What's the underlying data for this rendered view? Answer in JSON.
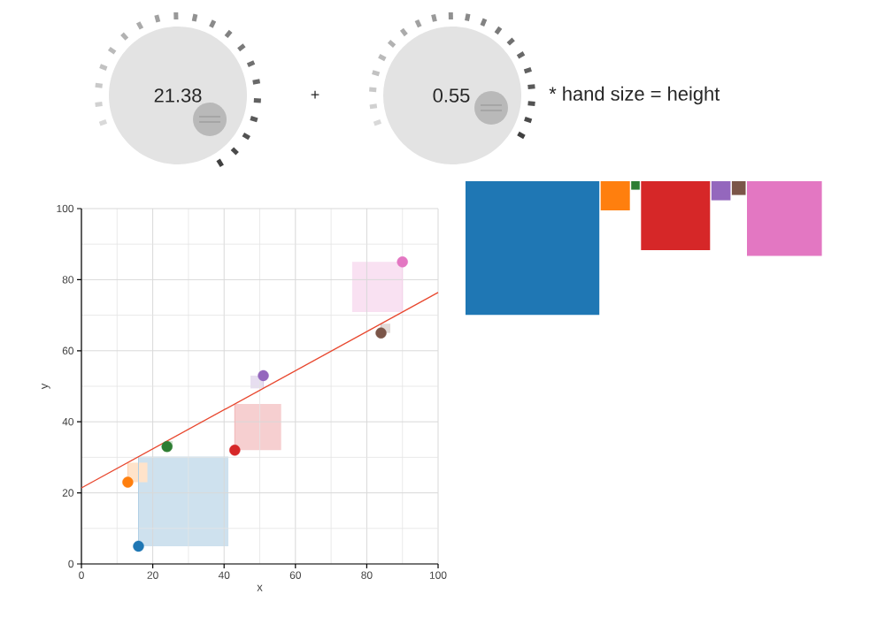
{
  "chart_data": {
    "type": "scatter",
    "xlabel": "x",
    "ylabel": "y",
    "xlim": [
      0,
      100
    ],
    "ylim": [
      0,
      100
    ],
    "xticks": [
      0,
      20,
      40,
      60,
      80,
      100
    ],
    "yticks": [
      0,
      20,
      40,
      60,
      80,
      100
    ],
    "grid": true,
    "annotations": [
      "21.38",
      "+",
      "0.55",
      "* hand size = height"
    ],
    "series": [
      {
        "type": "scatter",
        "marker": "circle",
        "x": [
          16,
          13,
          24,
          43,
          51,
          84,
          90
        ],
        "values": [
          5,
          23,
          33,
          32,
          53,
          65,
          85
        ],
        "colors": [
          "#1f77b4",
          "#ff7f0e",
          "#2e7d32",
          "#d62728",
          "#9467bd",
          "#7b5548",
          "#e377c2"
        ],
        "errors": [
          [
            5,
            30.2
          ],
          [
            23,
            28.5
          ],
          [
            33,
            34.6
          ],
          [
            32,
            45
          ],
          [
            49.4,
            53
          ],
          [
            65,
            67.6
          ],
          [
            70.9,
            85
          ]
        ]
      },
      {
        "type": "line",
        "marker": "none",
        "x": [
          0,
          100
        ],
        "values": [
          21.38,
          76.38
        ],
        "color": "#e8472e"
      }
    ]
  }
}
